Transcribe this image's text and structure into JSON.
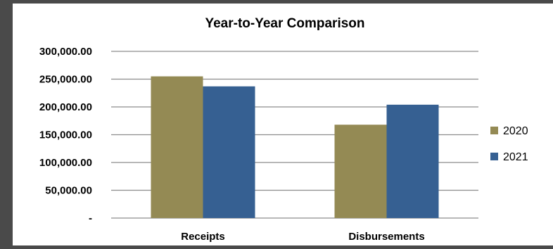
{
  "chart_data": {
    "type": "bar",
    "title": "Year-to-Year Comparison",
    "categories": [
      "Receipts",
      "Disbursements"
    ],
    "series": [
      {
        "name": "2020",
        "values": [
          255000,
          168000
        ],
        "color": "#948a54"
      },
      {
        "name": "2021",
        "values": [
          237000,
          204000
        ],
        "color": "#366092"
      }
    ],
    "y_ticks": [
      0,
      50000,
      100000,
      150000,
      200000,
      250000,
      300000
    ],
    "y_tick_labels": [
      "-",
      "50,000.00",
      "100,000.00",
      "150,000.00",
      "200,000.00",
      "250,000.00",
      "300,000.00"
    ],
    "ylim": [
      0,
      300000
    ],
    "grid": true,
    "legend_position": "right",
    "xlabel": "",
    "ylabel": ""
  }
}
